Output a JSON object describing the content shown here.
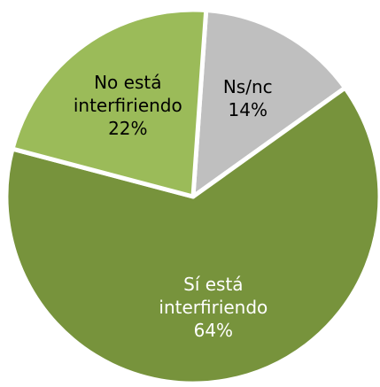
{
  "chart_data": {
    "type": "pie",
    "categories": [
      "Ns/nc",
      "Sí está interfiriendo",
      "No está interfiriendo"
    ],
    "values": [
      14,
      64,
      22
    ],
    "value_labels": [
      "14%",
      "64%",
      "22%"
    ],
    "colors": [
      "#bfbfbf",
      "#77933c",
      "#9bbb59"
    ],
    "label_colors": [
      "#000000",
      "#ffffff",
      "#000000"
    ]
  }
}
